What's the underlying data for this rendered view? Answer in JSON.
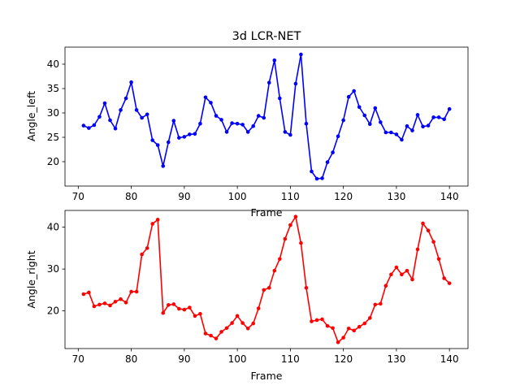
{
  "chart_data": [
    {
      "type": "line",
      "title": "3d LCR-NET",
      "xlabel": "Frame",
      "ylabel": "Angle_left",
      "xlim": [
        67.5,
        143.5
      ],
      "ylim": [
        15.0,
        43.5
      ],
      "xticks": [
        70,
        80,
        90,
        100,
        110,
        120,
        130,
        140
      ],
      "yticks": [
        20,
        25,
        30,
        35,
        40
      ],
      "grid": false,
      "series": [
        {
          "color": "#0000ff",
          "marker": "circle",
          "x": [
            71,
            72,
            73,
            74,
            75,
            76,
            77,
            78,
            79,
            80,
            81,
            82,
            83,
            84,
            85,
            86,
            87,
            88,
            89,
            90,
            91,
            92,
            93,
            94,
            95,
            96,
            97,
            98,
            99,
            100,
            101,
            102,
            103,
            104,
            105,
            106,
            107,
            108,
            109,
            110,
            111,
            112,
            113,
            114,
            115,
            116,
            117,
            118,
            119,
            120,
            121,
            122,
            123,
            124,
            125,
            126,
            127,
            128,
            129,
            130,
            131,
            132,
            133,
            134,
            135,
            136,
            137,
            138,
            139,
            140
          ],
          "values": [
            27.4,
            26.9,
            27.5,
            29.2,
            32.0,
            28.5,
            26.8,
            30.6,
            33.0,
            36.3,
            30.6,
            29.0,
            29.7,
            24.4,
            23.4,
            19.1,
            24.0,
            28.4,
            24.9,
            25.1,
            25.6,
            25.7,
            27.8,
            33.2,
            32.1,
            29.4,
            28.6,
            26.1,
            27.9,
            27.8,
            27.6,
            26.1,
            27.3,
            29.4,
            29.0,
            36.2,
            40.8,
            33.0,
            26.1,
            25.5,
            36.0,
            42.0,
            27.8,
            18.0,
            16.5,
            16.6,
            19.9,
            21.9,
            25.2,
            28.5,
            33.3,
            34.5,
            31.2,
            29.5,
            27.7,
            31.0,
            28.1,
            26.0,
            26.0,
            25.6,
            24.5,
            27.3,
            26.4,
            29.6,
            27.2,
            27.4,
            29.1,
            29.1,
            28.7,
            30.8
          ]
        }
      ]
    },
    {
      "type": "line",
      "title": "",
      "xlabel": "Frame",
      "ylabel": "Angle_right",
      "xlim": [
        67.5,
        143.5
      ],
      "ylim": [
        11.0,
        44.0
      ],
      "xticks": [
        70,
        80,
        90,
        100,
        110,
        120,
        130,
        140
      ],
      "yticks": [
        20,
        30,
        40
      ],
      "grid": false,
      "series": [
        {
          "color": "#ff0000",
          "marker": "circle",
          "x": [
            71,
            72,
            73,
            74,
            75,
            76,
            77,
            78,
            79,
            80,
            81,
            82,
            83,
            84,
            85,
            86,
            87,
            88,
            89,
            90,
            91,
            92,
            93,
            94,
            95,
            96,
            97,
            98,
            99,
            100,
            101,
            102,
            103,
            104,
            105,
            106,
            107,
            108,
            109,
            110,
            111,
            112,
            113,
            114,
            115,
            116,
            117,
            118,
            119,
            120,
            121,
            122,
            123,
            124,
            125,
            126,
            127,
            128,
            129,
            130,
            131,
            132,
            133,
            134,
            135,
            136,
            137,
            138,
            139,
            140
          ],
          "values": [
            24.0,
            24.4,
            21.1,
            21.5,
            21.8,
            21.3,
            22.2,
            22.8,
            22.0,
            24.6,
            24.6,
            33.5,
            35.0,
            40.8,
            41.8,
            19.5,
            21.4,
            21.6,
            20.5,
            20.3,
            20.8,
            18.8,
            19.3,
            14.6,
            14.1,
            13.4,
            15.0,
            15.9,
            17.1,
            18.8,
            17.1,
            15.8,
            17.0,
            20.6,
            25.0,
            25.5,
            29.6,
            32.4,
            37.2,
            40.5,
            42.5,
            36.2,
            25.5,
            17.5,
            17.8,
            18.0,
            16.4,
            15.9,
            12.5,
            13.6,
            15.8,
            15.3,
            16.2,
            17.0,
            18.3,
            21.5,
            21.7,
            26.0,
            28.7,
            30.4,
            28.7,
            29.6,
            27.5,
            34.7,
            40.9,
            39.2,
            36.5,
            32.4,
            27.8,
            26.6
          ]
        }
      ]
    }
  ]
}
